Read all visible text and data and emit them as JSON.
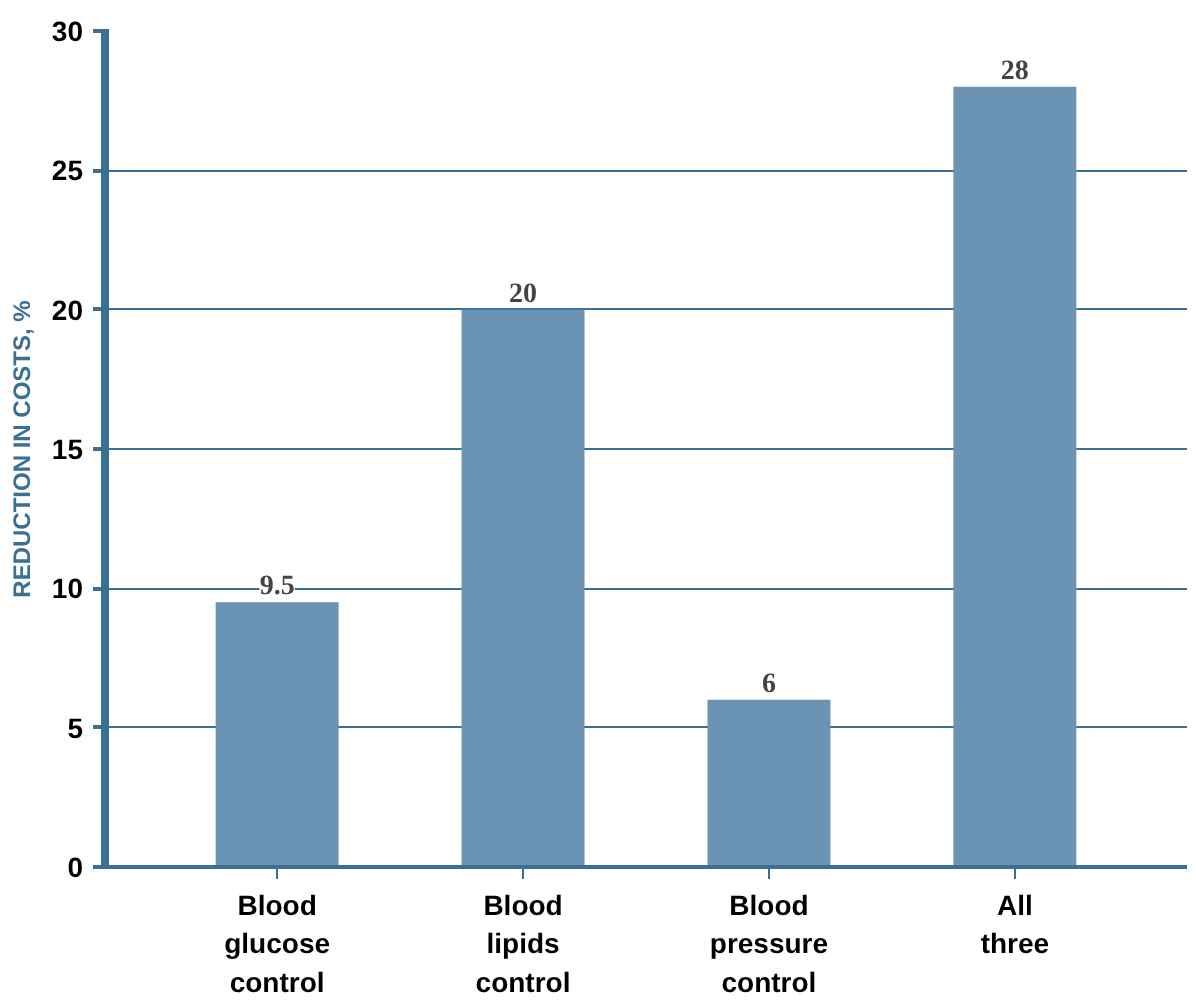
{
  "chart_data": {
    "type": "bar",
    "ylabel": "REDUCTION IN COSTS, %",
    "categories": [
      "Blood\nglucose\ncontrol",
      "Blood\nlipids\ncontrol",
      "Blood\npressure\ncontrol",
      "All\nthree"
    ],
    "values": [
      9.5,
      20,
      6,
      28
    ],
    "color": "#6b93b3",
    "ylim": [
      0,
      30
    ],
    "yticks": [
      0,
      5,
      10,
      15,
      20,
      25,
      30
    ],
    "grid": "y",
    "data_labels": true
  }
}
